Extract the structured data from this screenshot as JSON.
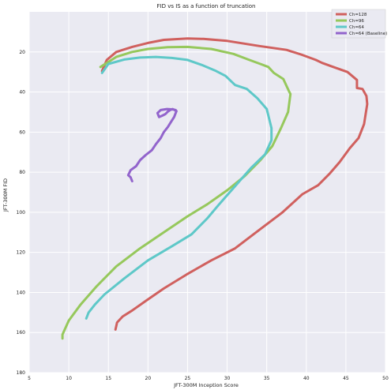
{
  "chart_data": {
    "type": "line",
    "title": "FID vs IS as a function of truncation",
    "xlabel": "JFT-300M Inception Score",
    "ylabel": "JFT-300M FID",
    "xlim": [
      5,
      50
    ],
    "ylim": [
      0,
      180
    ],
    "y_inverted": true,
    "xticks": [
      5,
      10,
      15,
      20,
      25,
      30,
      35,
      40,
      45,
      50
    ],
    "yticks": [
      20,
      40,
      60,
      80,
      100,
      120,
      140,
      160,
      180
    ],
    "grid": true,
    "legend_position": "top-right",
    "series": [
      {
        "name": "Ch=128",
        "color": "#d0605e",
        "x": [
          15.9,
          16.1,
          16.8,
          18.0,
          19.8,
          22.0,
          24.9,
          28.0,
          31.0,
          34.0,
          37.0,
          39.5,
          41.5,
          43.0,
          44.2,
          45.5,
          46.6,
          47.3,
          47.7,
          47.6,
          47.1,
          46.4,
          46.4,
          45.2,
          43.4,
          42.0,
          41.2,
          39.5,
          37.5,
          34.0,
          30.0,
          27.0,
          25.0,
          22.0,
          20.0,
          18.0,
          16.0,
          14.8,
          14.2
        ],
        "y": [
          158.5,
          155.0,
          152.0,
          149.0,
          144.0,
          138.0,
          131.0,
          124.0,
          118.0,
          109.0,
          100.0,
          91.0,
          86.5,
          80.5,
          75.0,
          68.0,
          63.0,
          56.0,
          46.0,
          42.0,
          38.5,
          38.0,
          34.0,
          30.0,
          27.5,
          25.5,
          24.0,
          21.5,
          19.0,
          17.0,
          14.5,
          13.5,
          13.3,
          14.0,
          15.5,
          17.5,
          20.0,
          24.0,
          29.5
        ]
      },
      {
        "name": "Ch=96",
        "color": "#96c85c",
        "x": [
          9.2,
          9.2,
          10.0,
          11.5,
          13.5,
          16.0,
          19.0,
          22.0,
          25.0,
          27.5,
          30.0,
          32.2,
          34.2,
          35.7,
          36.8,
          37.7,
          38.0,
          37.8,
          37.1,
          35.9,
          35.2,
          34.2,
          32.8,
          30.8,
          28.0,
          25.0,
          22.5,
          20.0,
          18.0,
          16.0,
          14.0
        ],
        "y": [
          163.0,
          161.0,
          154.0,
          146.0,
          137.0,
          127.0,
          118.0,
          110.0,
          102.0,
          96.0,
          89.0,
          82.0,
          74.0,
          67.0,
          58.0,
          50.0,
          41.0,
          39.5,
          33.5,
          30.5,
          27.5,
          26.0,
          24.0,
          21.0,
          18.5,
          17.5,
          17.6,
          18.5,
          20.0,
          22.5,
          27.5
        ]
      },
      {
        "name": "Ch=64",
        "color": "#5ec8c8",
        "x": [
          12.2,
          12.5,
          13.3,
          14.5,
          17.0,
          20.0,
          23.0,
          25.5,
          27.5,
          29.0,
          31.0,
          33.0,
          34.8,
          35.6,
          35.6,
          35.0,
          33.8,
          32.5,
          31.0,
          29.8,
          28.6,
          26.8,
          25.0,
          23.0,
          21.0,
          19.0,
          17.0,
          15.0,
          14.2
        ],
        "y": [
          153.0,
          150.0,
          146.0,
          141.0,
          133.0,
          124.0,
          117.0,
          111.0,
          103.0,
          96.0,
          87.0,
          78.0,
          71.0,
          64.0,
          58.0,
          48.5,
          43.0,
          38.5,
          36.5,
          32.0,
          29.5,
          26.5,
          24.0,
          23.0,
          22.5,
          22.8,
          23.8,
          26.0,
          30.5
        ]
      },
      {
        "name": "Ch=64 (Baseline)",
        "color": "#9264cc",
        "x": [
          18.0,
          17.8,
          17.5,
          17.8,
          18.5,
          19.0,
          19.7,
          20.5,
          21.0,
          21.6,
          22.0,
          22.5,
          22.9,
          23.3,
          23.6,
          23.1,
          22.8,
          22.5,
          22.2,
          21.8,
          21.4,
          21.2,
          21.6,
          22.4,
          23.2,
          23.5
        ],
        "y": [
          84.5,
          82.5,
          81.5,
          79.0,
          77.0,
          74.0,
          71.5,
          69.0,
          66.0,
          63.0,
          60.0,
          57.5,
          55.0,
          52.5,
          49.5,
          48.5,
          49.0,
          49.8,
          51.0,
          51.8,
          52.5,
          50.5,
          49.0,
          48.5,
          48.7,
          49.0
        ]
      }
    ]
  }
}
